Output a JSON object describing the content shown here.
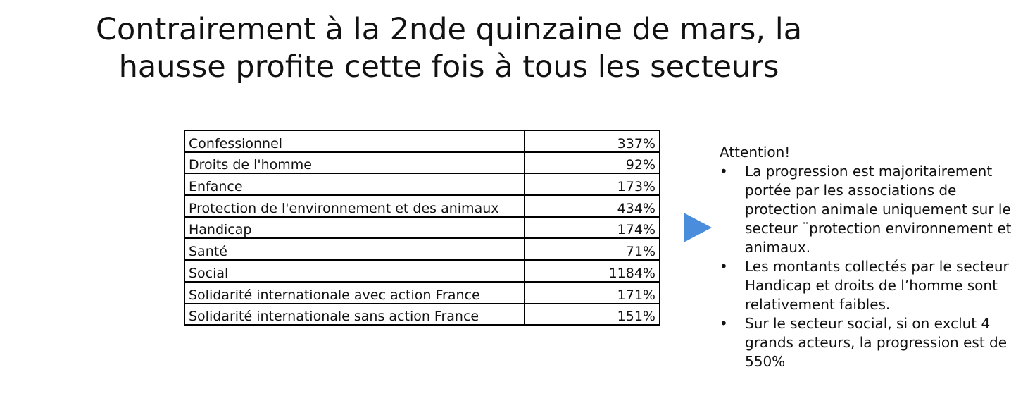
{
  "title_lines": [
    "Contrairement à la 2nde quinzaine de mars, la",
    "hausse profite cette fois à tous les secteurs"
  ],
  "table": {
    "rows": [
      [
        "Confessionnel",
        "337%"
      ],
      [
        "Droits de l'homme",
        "92%"
      ],
      [
        "Enfance",
        "173%"
      ],
      [
        "Protection de l'environnement et des animaux",
        "434%"
      ],
      [
        "Handicap",
        "174%"
      ],
      [
        "Santé",
        "71%"
      ],
      [
        "Social",
        "1184%"
      ],
      [
        "Solidarité internationale avec action France",
        "171%"
      ],
      [
        "Solidarité internationale sans action France",
        "151%"
      ]
    ]
  },
  "notes": {
    "heading": "Attention!",
    "bullets": [
      "La progression est majoritairement portée par les associations de protection animale uniquement sur le secteur ¨protection environnement et animaux.",
      "Les montants collectés par le secteur Handicap  et droits de l’homme sont relativement faibles.",
      "Sur le secteur social, si on exclut 4 grands acteurs, la progression est de 550%"
    ]
  }
}
